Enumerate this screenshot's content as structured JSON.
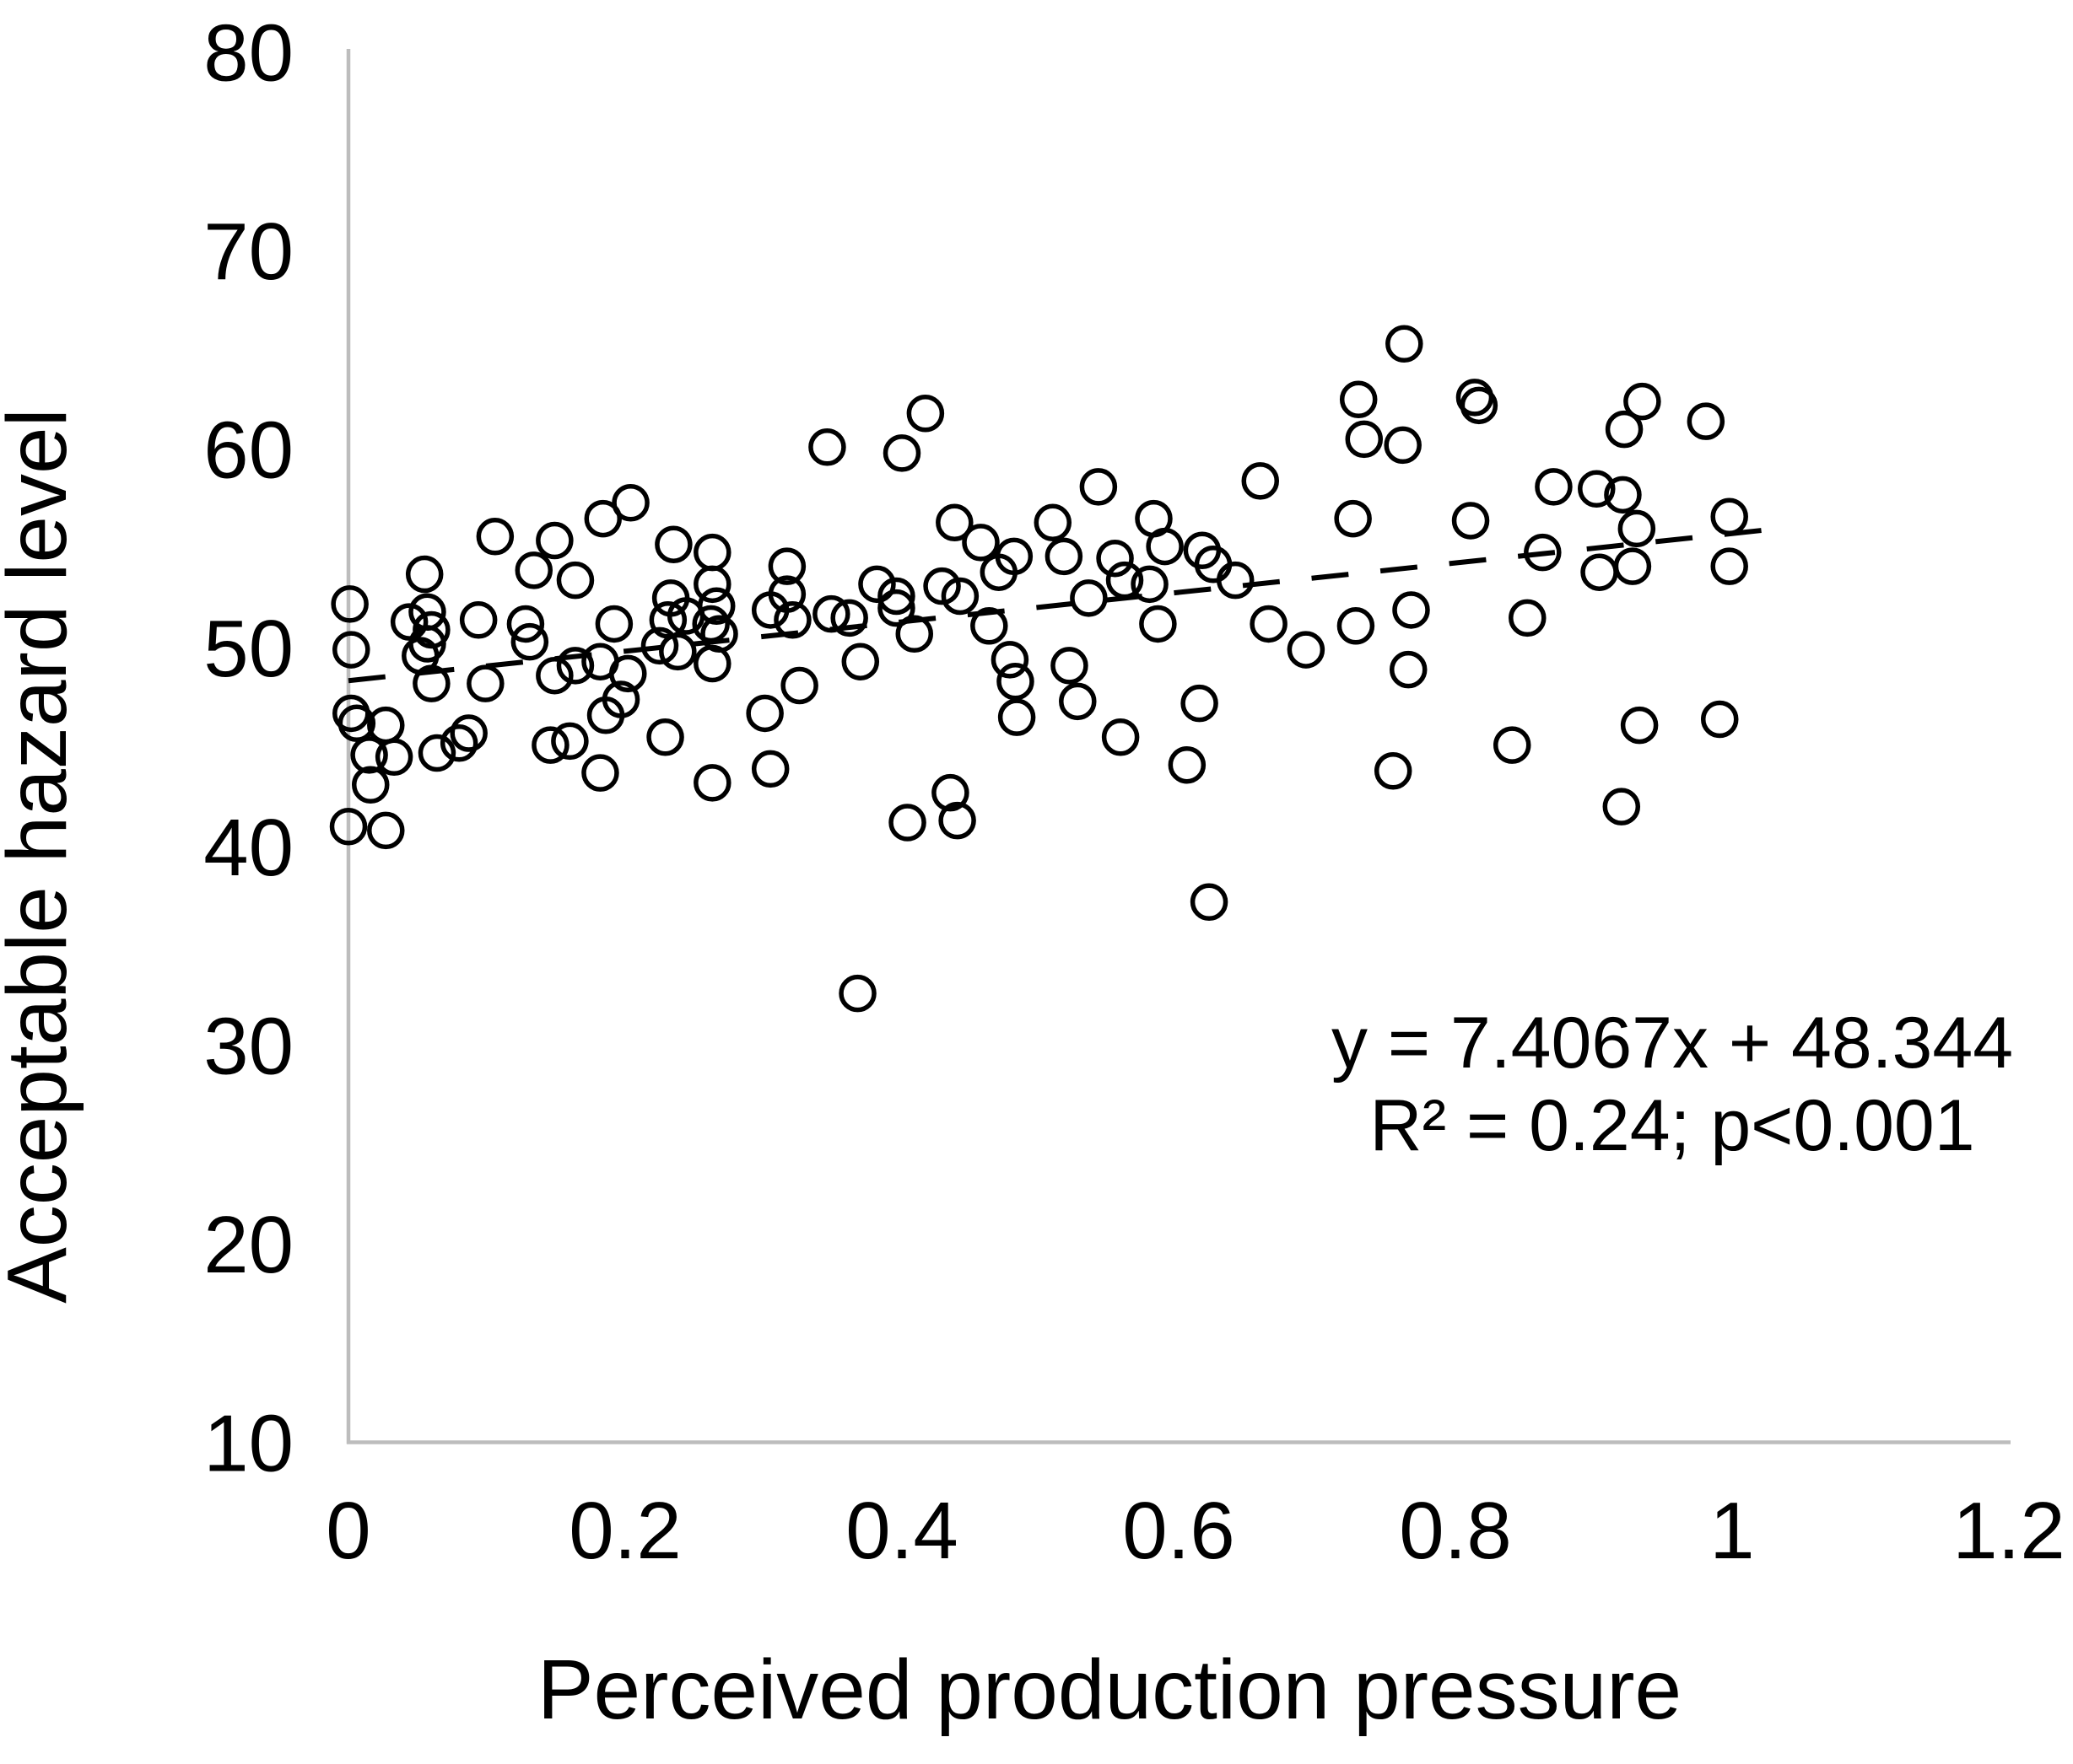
{
  "figure": {
    "background": "#ffffff"
  },
  "chart_data": {
    "type": "scatter",
    "title": "",
    "xlabel": "Perceived production pressure",
    "ylabel": "Acceptable hazard level",
    "xlim": [
      0,
      1.2
    ],
    "ylim": [
      10,
      80
    ],
    "x_tick_values": [
      0,
      0.2,
      0.4,
      0.6,
      0.8,
      1,
      1.2
    ],
    "x_tick_labels": [
      "0",
      "0.2",
      "0.4",
      "0.6",
      "0.8",
      "1",
      "1.2"
    ],
    "y_tick_values": [
      10,
      20,
      30,
      40,
      50,
      60,
      70,
      80
    ],
    "y_tick_labels": [
      "10",
      "20",
      "30",
      "40",
      "50",
      "60",
      "70",
      "80"
    ],
    "grid": false,
    "legend": "none",
    "marker_shape": "open-circle",
    "marker_color": "#000000",
    "axis_color": "#bdbdbd",
    "trend_line": {
      "style": "dashed",
      "color": "#000000",
      "slope": 7.4067,
      "intercept": 48.344,
      "x_start": 0,
      "x_end": 1.025
    },
    "annotation": {
      "line1": "y = 7.4067x + 48.344",
      "line2": "R² = 0.24; p<0.001"
    },
    "points": [
      [
        0.001,
        52.2
      ],
      [
        0.002,
        49.9
      ],
      [
        0.055,
        53.7
      ],
      [
        0.044,
        51.3
      ],
      [
        0.057,
        51.8
      ],
      [
        0.06,
        50.9
      ],
      [
        0.057,
        50.2
      ],
      [
        0.052,
        49.6
      ],
      [
        0.06,
        48.2
      ],
      [
        0.094,
        51.4
      ],
      [
        0.099,
        48.2
      ],
      [
        0.106,
        55.6
      ],
      [
        0.149,
        55.4
      ],
      [
        0.134,
        53.9
      ],
      [
        0.164,
        53.4
      ],
      [
        0.128,
        51.2
      ],
      [
        0.131,
        50.3
      ],
      [
        0.184,
        56.5
      ],
      [
        0.204,
        57.3
      ],
      [
        0.235,
        55.2
      ],
      [
        0.192,
        51.2
      ],
      [
        0.233,
        52.5
      ],
      [
        0.231,
        51.4
      ],
      [
        0.244,
        51.6
      ],
      [
        0.225,
        50.1
      ],
      [
        0.238,
        49.8
      ],
      [
        0.263,
        54.8
      ],
      [
        0.263,
        53.2
      ],
      [
        0.266,
        52.1
      ],
      [
        0.262,
        51.2
      ],
      [
        0.268,
        50.7
      ],
      [
        0.263,
        49.2
      ],
      [
        0.149,
        48.6
      ],
      [
        0.164,
        49.1
      ],
      [
        0.182,
        49.3
      ],
      [
        0.202,
        48.7
      ],
      [
        0.197,
        47.4
      ],
      [
        0.186,
        46.6
      ],
      [
        0.002,
        46.7
      ],
      [
        0.006,
        46.2
      ],
      [
        0.027,
        46.1
      ],
      [
        0.015,
        44.6
      ],
      [
        0.033,
        44.5
      ],
      [
        0.016,
        43.1
      ],
      [
        0.064,
        44.7
      ],
      [
        0.08,
        45.2
      ],
      [
        0.087,
        45.7
      ],
      [
        0.146,
        45.1
      ],
      [
        0.16,
        45.3
      ],
      [
        0.182,
        43.7
      ],
      [
        0.229,
        45.5
      ],
      [
        0.0,
        41.0
      ],
      [
        0.027,
        40.8
      ],
      [
        0.263,
        43.2
      ],
      [
        0.346,
        60.1
      ],
      [
        0.417,
        61.8
      ],
      [
        0.4,
        59.8
      ],
      [
        0.438,
        56.3
      ],
      [
        0.457,
        55.3
      ],
      [
        0.481,
        54.6
      ],
      [
        0.317,
        54.1
      ],
      [
        0.317,
        52.7
      ],
      [
        0.305,
        51.9
      ],
      [
        0.321,
        51.4
      ],
      [
        0.349,
        51.7
      ],
      [
        0.362,
        51.5
      ],
      [
        0.382,
        53.2
      ],
      [
        0.396,
        52.6
      ],
      [
        0.396,
        52.0
      ],
      [
        0.429,
        53.1
      ],
      [
        0.442,
        52.6
      ],
      [
        0.47,
        53.8
      ],
      [
        0.463,
        51.1
      ],
      [
        0.409,
        50.7
      ],
      [
        0.509,
        56.3
      ],
      [
        0.517,
        54.6
      ],
      [
        0.326,
        48.1
      ],
      [
        0.301,
        46.7
      ],
      [
        0.37,
        49.3
      ],
      [
        0.305,
        43.9
      ],
      [
        0.404,
        41.2
      ],
      [
        0.435,
        42.7
      ],
      [
        0.44,
        41.3
      ],
      [
        0.368,
        32.6
      ],
      [
        0.478,
        49.4
      ],
      [
        0.482,
        48.3
      ],
      [
        0.483,
        46.5
      ],
      [
        0.521,
        49.1
      ],
      [
        0.763,
        65.3
      ],
      [
        0.73,
        62.5
      ],
      [
        0.734,
        60.5
      ],
      [
        0.762,
        60.2
      ],
      [
        0.659,
        58.4
      ],
      [
        0.542,
        58.1
      ],
      [
        0.726,
        56.5
      ],
      [
        0.582,
        56.5
      ],
      [
        0.59,
        55.1
      ],
      [
        0.617,
        54.9
      ],
      [
        0.625,
        54.2
      ],
      [
        0.554,
        54.5
      ],
      [
        0.561,
        53.4
      ],
      [
        0.579,
        53.2
      ],
      [
        0.641,
        53.4
      ],
      [
        0.535,
        52.5
      ],
      [
        0.585,
        51.2
      ],
      [
        0.665,
        51.2
      ],
      [
        0.728,
        51.1
      ],
      [
        0.768,
        51.9
      ],
      [
        0.692,
        49.9
      ],
      [
        0.527,
        47.3
      ],
      [
        0.558,
        45.5
      ],
      [
        0.615,
        47.2
      ],
      [
        0.606,
        44.1
      ],
      [
        0.766,
        48.9
      ],
      [
        0.755,
        43.8
      ],
      [
        0.622,
        37.2
      ],
      [
        0.814,
        62.6
      ],
      [
        0.817,
        62.2
      ],
      [
        0.935,
        62.4
      ],
      [
        0.922,
        61.0
      ],
      [
        0.981,
        61.4
      ],
      [
        0.871,
        58.1
      ],
      [
        0.902,
        58.0
      ],
      [
        0.921,
        57.7
      ],
      [
        0.811,
        56.4
      ],
      [
        0.931,
        56.0
      ],
      [
        0.863,
        54.8
      ],
      [
        0.998,
        56.6
      ],
      [
        0.998,
        54.1
      ],
      [
        0.904,
        53.8
      ],
      [
        0.928,
        54.1
      ],
      [
        0.852,
        51.5
      ],
      [
        0.841,
        45.1
      ],
      [
        0.933,
        46.1
      ],
      [
        0.991,
        46.4
      ],
      [
        0.92,
        42.0
      ]
    ]
  }
}
